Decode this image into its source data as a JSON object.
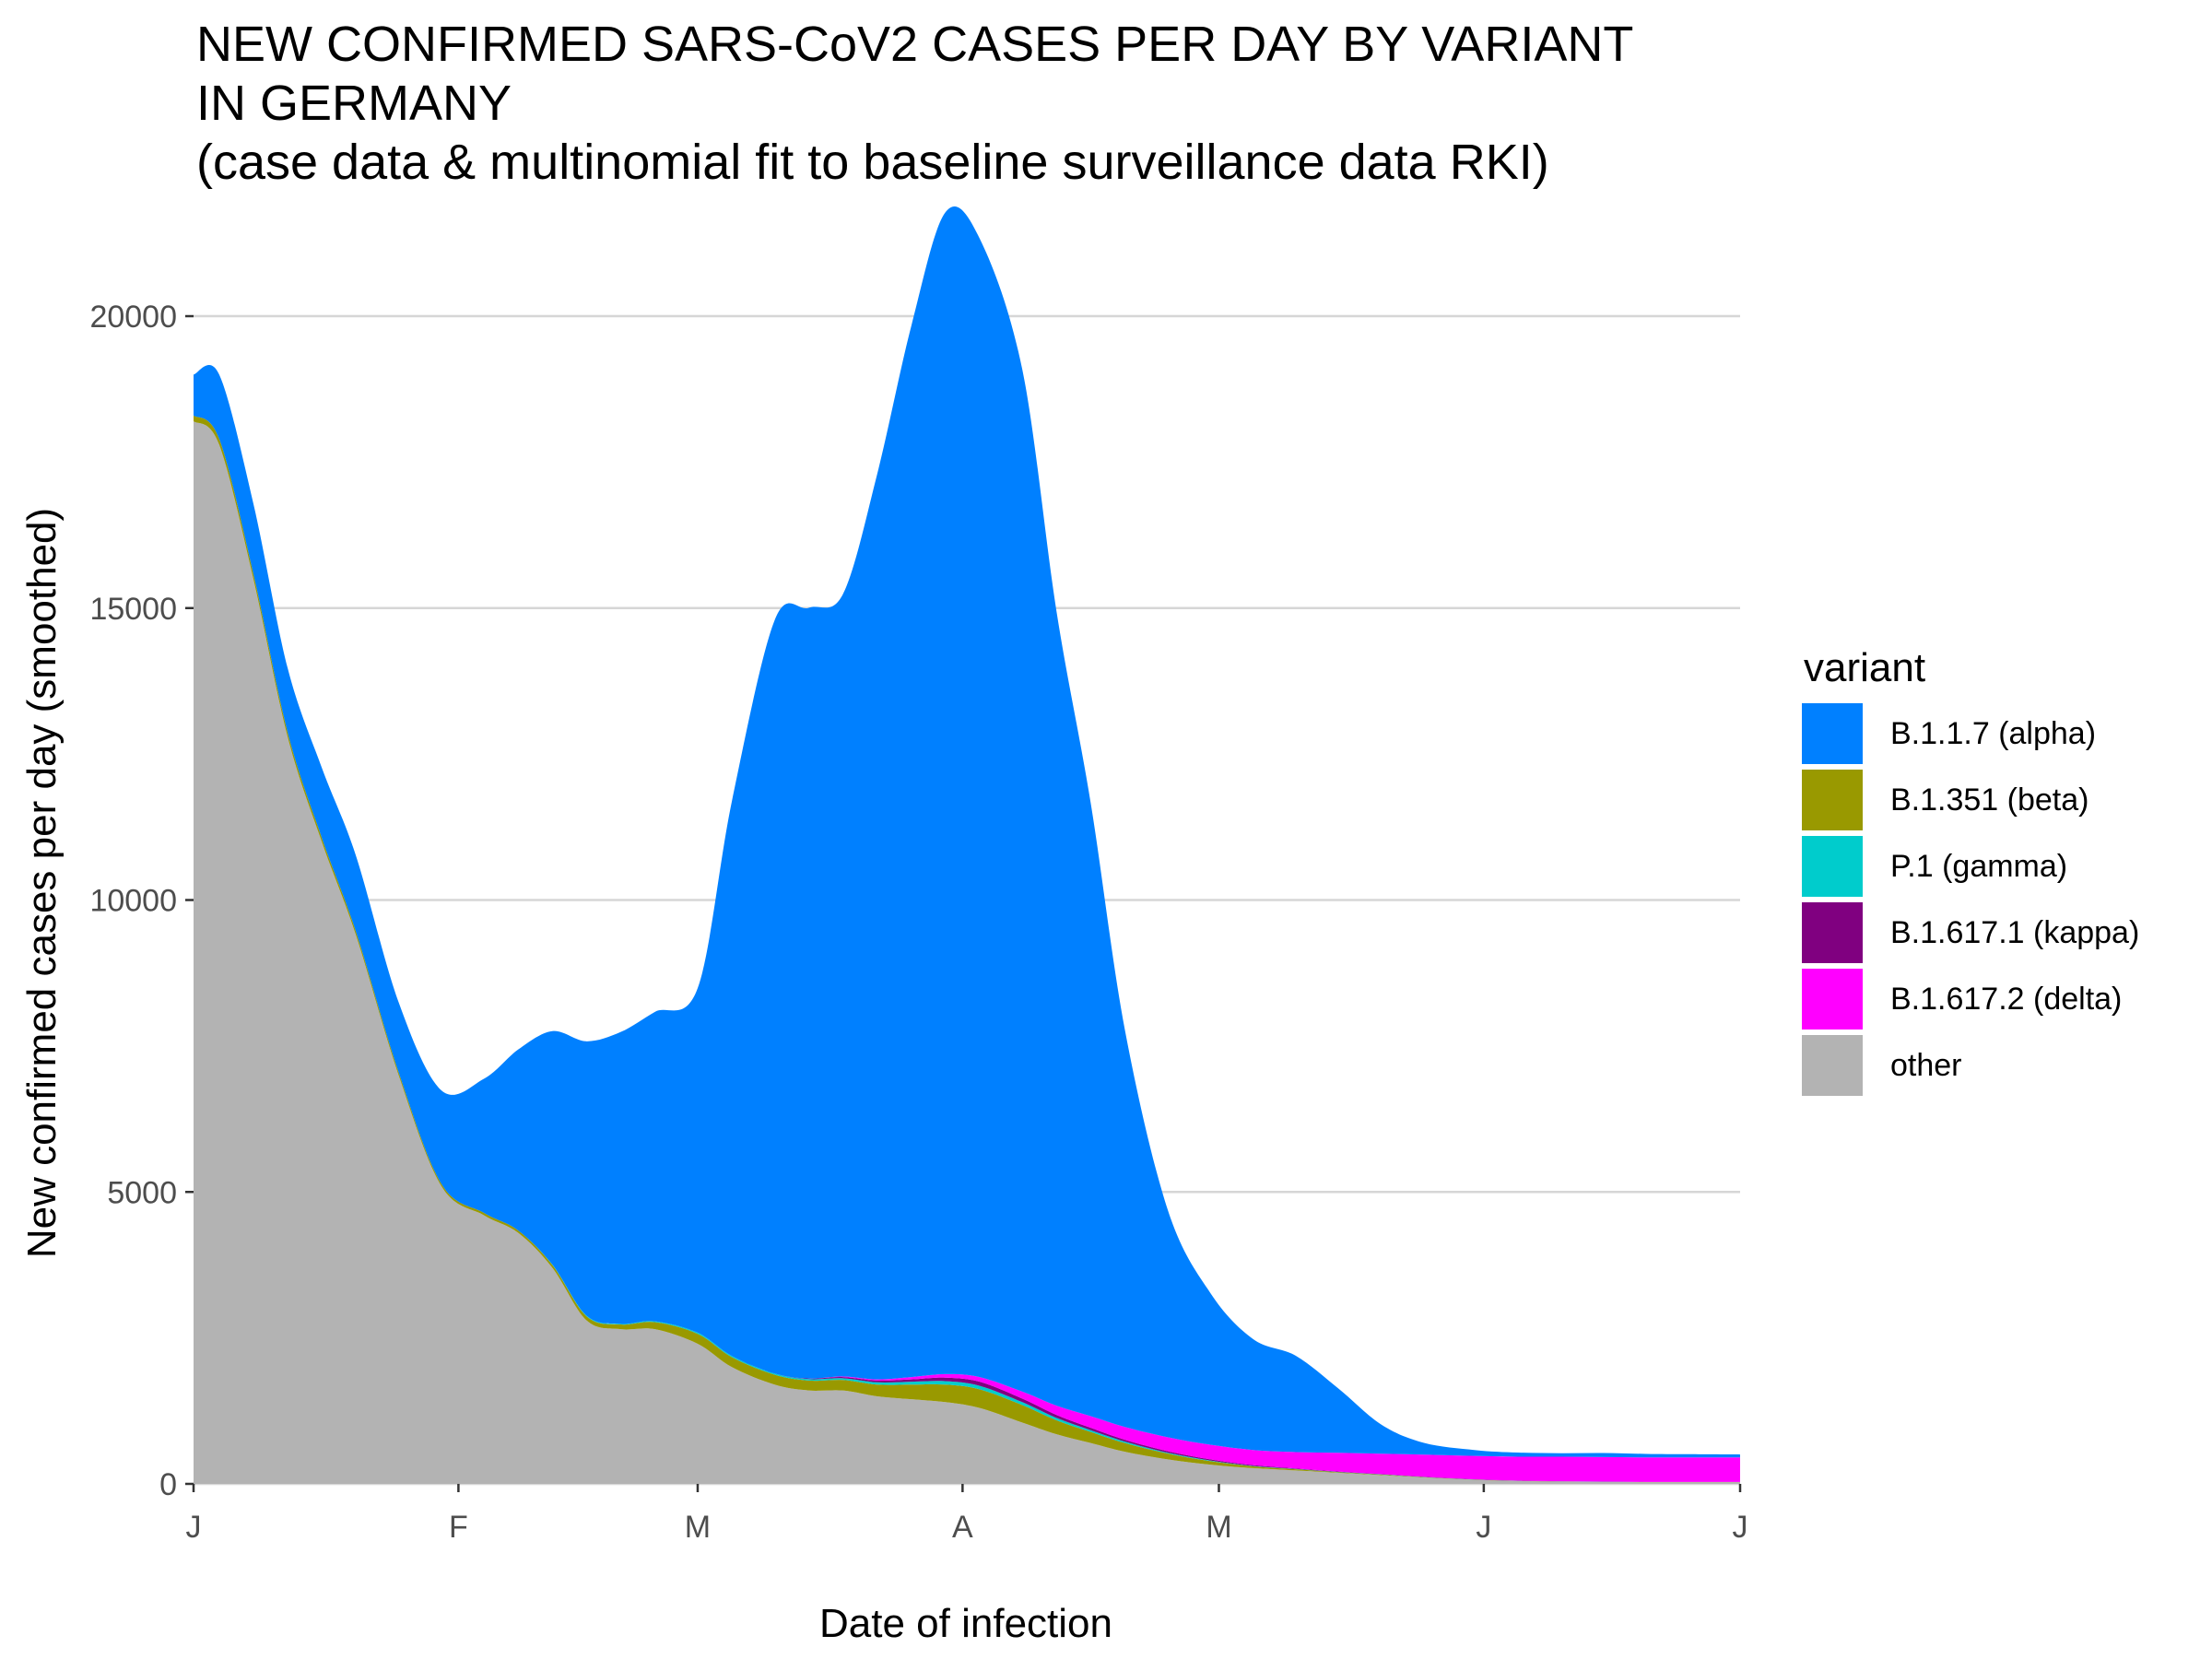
{
  "title_lines": [
    "NEW CONFIRMED SARS-CoV2 CASES PER DAY BY VARIANT",
    "IN GERMANY",
    "(case data & multinomial fit to baseline surveillance data RKI)"
  ],
  "chart_data": {
    "type": "area",
    "stacked": true,
    "xlabel": "Date of infection",
    "ylabel": "New confirmed cases per day (smoothed)",
    "x_ticks": [
      "J",
      "F",
      "M",
      "A",
      "M",
      "J",
      "J"
    ],
    "y_ticks": [
      0,
      5000,
      10000,
      15000,
      20000
    ],
    "ylim": [
      0,
      21500
    ],
    "grid": true,
    "legend_title": "variant",
    "legend_position": "right",
    "x": [
      "2021-01-01",
      "2021-01-04",
      "2021-01-08",
      "2021-01-12",
      "2021-01-16",
      "2021-01-20",
      "2021-01-25",
      "2021-01-30",
      "2021-02-04",
      "2021-02-08",
      "2021-02-12",
      "2021-02-16",
      "2021-02-20",
      "2021-02-24",
      "2021-03-01",
      "2021-03-05",
      "2021-03-10",
      "2021-03-14",
      "2021-03-18",
      "2021-03-22",
      "2021-03-26",
      "2021-03-30",
      "2021-04-03",
      "2021-04-08",
      "2021-04-12",
      "2021-04-16",
      "2021-04-20",
      "2021-04-25",
      "2021-04-30",
      "2021-05-05",
      "2021-05-10",
      "2021-05-15",
      "2021-05-20",
      "2021-05-25",
      "2021-05-31",
      "2021-06-05",
      "2021-06-10",
      "2021-06-15",
      "2021-06-20",
      "2021-06-25",
      "2021-07-01"
    ],
    "series": [
      {
        "name": "other",
        "color": "#b3b3b3",
        "values": [
          18200,
          17800,
          15500,
          12800,
          11000,
          9400,
          7000,
          5100,
          4600,
          4300,
          3700,
          2800,
          2650,
          2650,
          2400,
          2000,
          1700,
          1600,
          1600,
          1500,
          1450,
          1400,
          1300,
          1050,
          850,
          700,
          550,
          420,
          330,
          270,
          230,
          190,
          150,
          110,
          70,
          50,
          40,
          35,
          30,
          30,
          30
        ]
      },
      {
        "name": "B.1.351 (beta)",
        "color": "#999900",
        "values": [
          100,
          100,
          90,
          80,
          70,
          60,
          50,
          40,
          40,
          40,
          50,
          70,
          80,
          120,
          170,
          170,
          170,
          170,
          180,
          200,
          250,
          300,
          320,
          300,
          240,
          190,
          150,
          100,
          60,
          30,
          20,
          10,
          8,
          5,
          3,
          2,
          2,
          1,
          1,
          1,
          1
        ]
      },
      {
        "name": "P.1 (gamma)",
        "color": "#00cccc",
        "values": [
          0,
          0,
          0,
          0,
          0,
          0,
          0,
          0,
          0,
          0,
          5,
          10,
          10,
          15,
          20,
          20,
          20,
          25,
          30,
          40,
          50,
          60,
          60,
          50,
          40,
          30,
          25,
          15,
          10,
          6,
          5,
          4,
          3,
          2,
          2,
          1,
          1,
          1,
          1,
          1,
          1
        ]
      },
      {
        "name": "B.1.617.1 (kappa)",
        "color": "#800080",
        "values": [
          0,
          0,
          0,
          0,
          0,
          0,
          0,
          0,
          0,
          0,
          0,
          0,
          0,
          0,
          0,
          0,
          0,
          10,
          20,
          30,
          40,
          60,
          70,
          60,
          50,
          40,
          30,
          25,
          20,
          15,
          10,
          8,
          6,
          5,
          4,
          3,
          2,
          2,
          2,
          2,
          2
        ]
      },
      {
        "name": "B.1.617.2 (delta)",
        "color": "#ff00ff",
        "values": [
          0,
          0,
          0,
          0,
          0,
          0,
          0,
          0,
          0,
          0,
          0,
          0,
          0,
          0,
          0,
          0,
          0,
          0,
          10,
          20,
          40,
          60,
          80,
          120,
          160,
          200,
          220,
          240,
          250,
          260,
          280,
          320,
          350,
          380,
          400,
          410,
          420,
          420,
          420,
          420,
          420
        ]
      },
      {
        "name": "B.1.1.7 (alpha)",
        "color": "#0080ff",
        "values": [
          700,
          1100,
          1200,
          1100,
          1200,
          1300,
          1200,
          1600,
          2300,
          3100,
          4000,
          4700,
          5000,
          5300,
          5900,
          9500,
          12900,
          13200,
          13400,
          15500,
          18000,
          19900,
          19500,
          17500,
          13600,
          10500,
          6800,
          3900,
          2600,
          1900,
          1650,
          1100,
          500,
          200,
          100,
          70,
          60,
          70,
          60,
          55,
          50
        ]
      }
    ]
  }
}
